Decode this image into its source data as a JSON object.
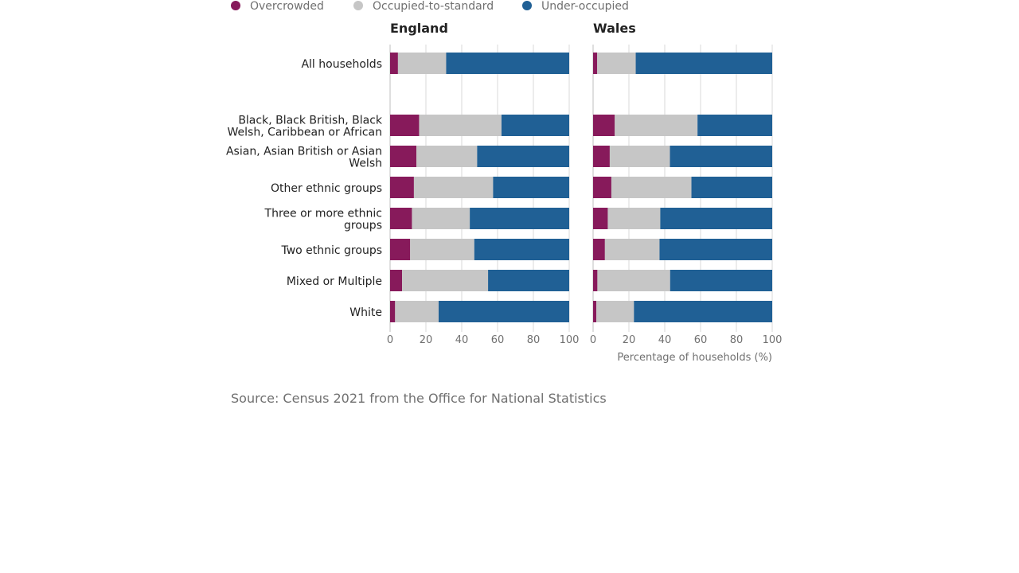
{
  "legend": [
    {
      "name": "Overcrowded",
      "color": "#871a5b"
    },
    {
      "name": "Occupied-to-standard",
      "color": "#c6c6c6"
    },
    {
      "name": "Under-occupied",
      "color": "#206095"
    }
  ],
  "source": "Source: Census 2021 from the Office for National Statistics",
  "chart_data": {
    "type": "bar",
    "orientation": "horizontal",
    "stacked": true,
    "xlabel": "Percentage of households (%)",
    "xlim": [
      0,
      100
    ],
    "xticks": [
      0,
      20,
      40,
      60,
      80,
      100
    ],
    "grid": true,
    "legend_position": "top",
    "categories": [
      [
        "All households"
      ],
      [],
      [
        "Black, Black British, Black",
        "Welsh, Caribbean or African"
      ],
      [
        "Asian, Asian British or Asian",
        "Welsh"
      ],
      [
        "Other ethnic groups"
      ],
      [
        "Three or more ethnic",
        "groups"
      ],
      [
        "Two ethnic groups"
      ],
      [
        "Mixed or Multiple"
      ],
      [
        "White"
      ]
    ],
    "panels": [
      {
        "title": "England",
        "series": [
          {
            "name": "Overcrowded",
            "values": [
              4.4,
              null,
              16.2,
              14.7,
              13.3,
              12.2,
              11.2,
              6.7,
              2.8
            ]
          },
          {
            "name": "Occupied-to-standard",
            "values": [
              26.9,
              null,
              46.0,
              33.9,
              44.2,
              32.3,
              35.8,
              48.0,
              24.3
            ]
          },
          {
            "name": "Under-occupied",
            "values": [
              68.7,
              null,
              37.8,
              51.4,
              42.5,
              55.5,
              53.0,
              45.3,
              72.9
            ]
          }
        ]
      },
      {
        "title": "Wales",
        "series": [
          {
            "name": "Overcrowded",
            "values": [
              2.3,
              null,
              12.1,
              9.3,
              10.2,
              8.2,
              6.6,
              2.4,
              1.8
            ]
          },
          {
            "name": "Occupied-to-standard",
            "values": [
              21.5,
              null,
              46.2,
              33.6,
              44.7,
              29.3,
              30.5,
              40.6,
              21.0
            ]
          },
          {
            "name": "Under-occupied",
            "values": [
              76.2,
              null,
              41.7,
              57.1,
              45.1,
              62.5,
              62.9,
              57.0,
              77.2
            ]
          }
        ]
      }
    ]
  }
}
